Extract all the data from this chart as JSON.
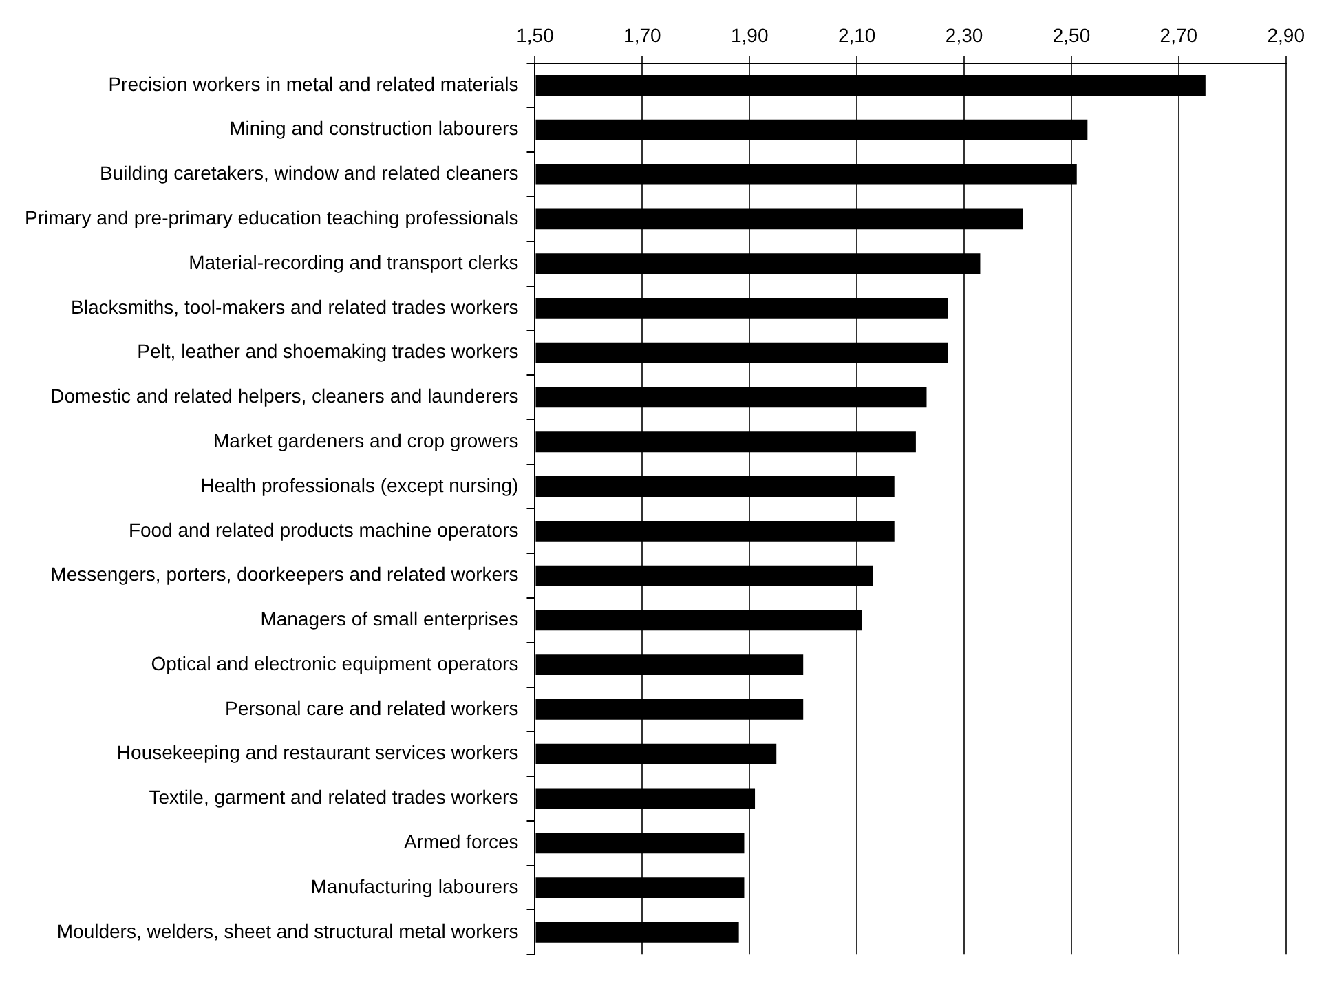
{
  "chart_data": {
    "type": "bar",
    "orientation": "horizontal",
    "categories": [
      "Precision workers in metal and related materials",
      "Mining and construction labourers",
      "Building caretakers, window and related cleaners",
      "Primary and pre-primary education teaching professionals",
      "Material-recording and transport clerks",
      "Blacksmiths, tool-makers and related trades workers",
      "Pelt, leather and shoemaking trades workers",
      "Domestic and related helpers, cleaners and launderers",
      "Market gardeners and crop growers",
      "Health professionals (except nursing)",
      "Food and related products machine operators",
      "Messengers, porters, doorkeepers and related workers",
      "Managers of small enterprises",
      "Optical and electronic equipment operators",
      "Personal care and related workers",
      "Housekeeping and restaurant services workers",
      "Textile, garment and related trades workers",
      "Armed forces",
      "Manufacturing labourers",
      "Moulders, welders, sheet and structural metal workers"
    ],
    "values": [
      2.75,
      2.53,
      2.51,
      2.41,
      2.33,
      2.27,
      2.27,
      2.23,
      2.21,
      2.17,
      2.17,
      2.13,
      2.11,
      2.0,
      2.0,
      1.95,
      1.91,
      1.89,
      1.89,
      1.88
    ],
    "color": "#000000",
    "xlim": [
      1.5,
      2.9
    ],
    "xticks": [
      {
        "value": 1.5,
        "label": "1,50"
      },
      {
        "value": 1.7,
        "label": "1,70"
      },
      {
        "value": 1.9,
        "label": "1,90"
      },
      {
        "value": 2.1,
        "label": "2,10"
      },
      {
        "value": 2.3,
        "label": "2,30"
      },
      {
        "value": 2.5,
        "label": "2,50"
      },
      {
        "value": 2.7,
        "label": "2,70"
      },
      {
        "value": 2.9,
        "label": "2,90"
      }
    ],
    "grid": "x",
    "legend": false
  }
}
